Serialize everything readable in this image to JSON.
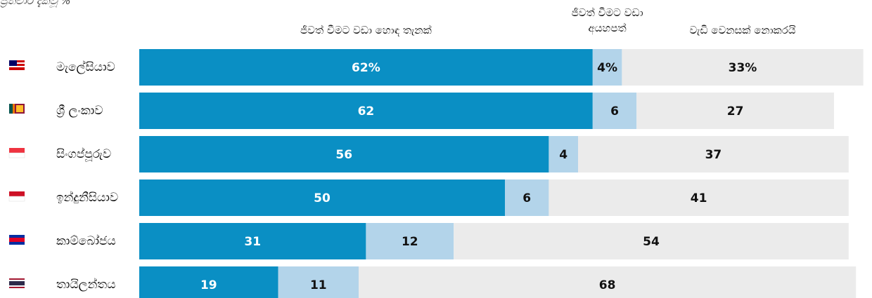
{
  "chart_data": {
    "type": "stacked_bar_horizontal",
    "subtitle": "ප්‍රතිචාර දැක්වූ %",
    "categories": [
      "මැලේසියාව",
      "ශ්‍රී ලංකාව",
      "සිංගප්පූරුව",
      "ඉන්දුනීසියාව",
      "කාම්බෝජය",
      "තායිලන්තය"
    ],
    "series": [
      {
        "name": "ජීවත් වීමට වඩා හොඳ තැනක්",
        "color": "#0a8fc4",
        "values": [
          62,
          62,
          56,
          50,
          31,
          19
        ],
        "value_labels": [
          "62%",
          "62",
          "56",
          "50",
          "31",
          "19"
        ]
      },
      {
        "name": "ජීවත් වීමට වඩා අයහපත්",
        "color": "#b3d4ea",
        "values": [
          4,
          6,
          4,
          6,
          12,
          11
        ],
        "value_labels": [
          "4%",
          "6",
          "4",
          "6",
          "12",
          "11"
        ]
      },
      {
        "name": "වැඩි වෙනසක් නොකරයි",
        "color": "#ebebeb",
        "values": [
          33,
          27,
          37,
          41,
          54,
          68
        ],
        "value_labels": [
          "33%",
          "27",
          "37",
          "41",
          "54",
          "68"
        ]
      }
    ],
    "xlim": [
      0,
      100
    ]
  }
}
